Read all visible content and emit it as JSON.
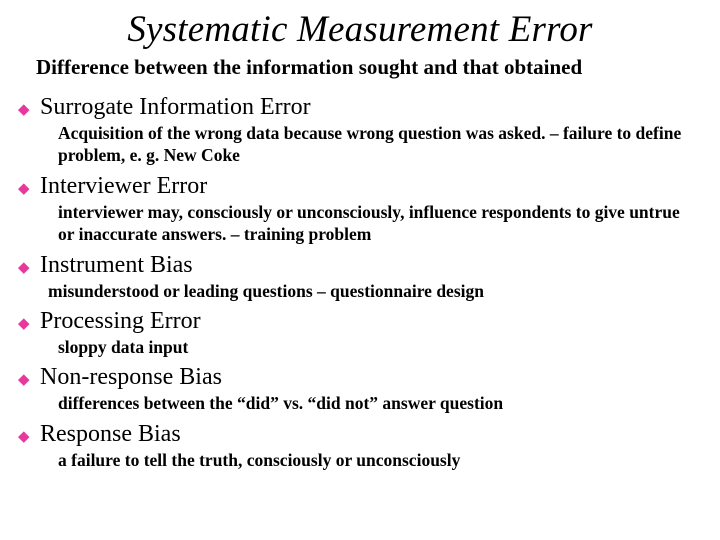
{
  "title": "Systematic Measurement Error",
  "subtitle": "Difference between the information sought and that obtained",
  "bullet_color": "#e6399b",
  "bullet_glyph": "◆",
  "items": [
    {
      "heading": "Surrogate Information Error",
      "desc": "Acquisition of the wrong data because wrong question was asked. – failure to define problem, e. g. New Coke"
    },
    {
      "heading": "Interviewer Error",
      "desc": "interviewer may, consciously or unconsciously, influence respondents to give untrue or inaccurate answers. – training problem"
    },
    {
      "heading": "Instrument Bias",
      "desc": "misunderstood or leading questions – questionnaire design",
      "desc_tight": true
    },
    {
      "heading": "Processing Error",
      "desc": "sloppy data input"
    },
    {
      "heading": "Non-response Bias",
      "desc": "differences between the “did” vs. “did not” answer question"
    },
    {
      "heading": "Response Bias",
      "desc": "a failure to tell the truth, consciously or unconsciously"
    }
  ],
  "typography": {
    "title_fontsize": 37,
    "title_style": "italic",
    "subtitle_fontsize": 21,
    "subtitle_weight": "bold",
    "heading_fontsize": 24,
    "desc_fontsize": 17.5,
    "desc_weight": "bold",
    "font_family": "Times New Roman"
  },
  "colors": {
    "background": "#ffffff",
    "text": "#000000",
    "bullet": "#e6399b"
  }
}
